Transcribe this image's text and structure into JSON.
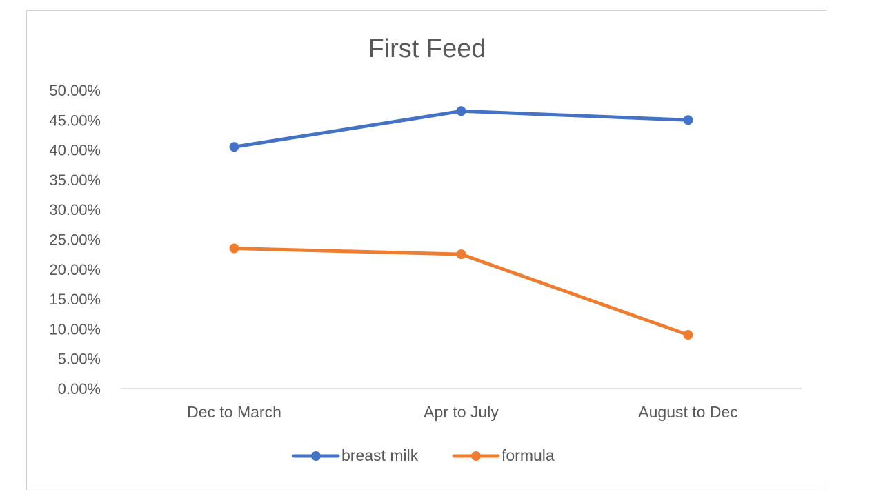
{
  "chart_data": {
    "type": "line",
    "title": "First Feed",
    "categories": [
      "Dec to March",
      "Apr to July",
      "August to Dec"
    ],
    "series": [
      {
        "name": "breast milk",
        "values": [
          40.5,
          46.5,
          45.0
        ],
        "color": "#4472C4"
      },
      {
        "name": "formula",
        "values": [
          23.5,
          22.5,
          9.0
        ],
        "color": "#ED7D31"
      }
    ],
    "ylim": [
      0,
      50
    ],
    "ytick_step": 5,
    "ytick_labels": [
      "0.00%",
      "5.00%",
      "10.00%",
      "15.00%",
      "20.00%",
      "25.00%",
      "30.00%",
      "35.00%",
      "40.00%",
      "45.00%",
      "50.00%"
    ],
    "grid": false,
    "legend_position": "bottom",
    "xlabel": "",
    "ylabel": ""
  }
}
